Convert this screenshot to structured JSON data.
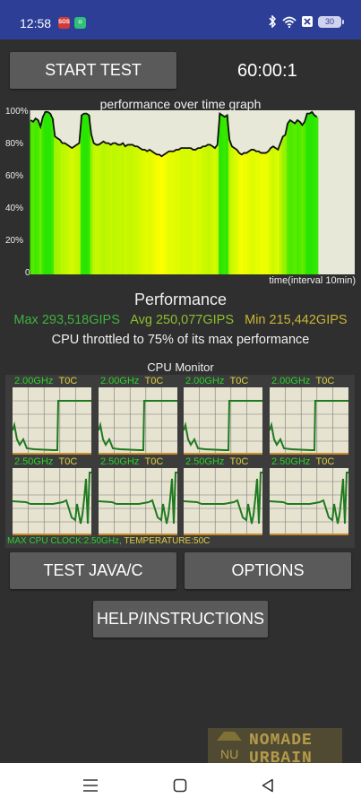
{
  "status_bar": {
    "time": "12:58",
    "battery": "30",
    "icons": [
      "sos-app-icon",
      "green-app-icon",
      "bluetooth-icon",
      "wifi-icon",
      "x-icon",
      "battery-icon"
    ]
  },
  "controls": {
    "start_test_label": "START TEST",
    "timer": "60:00:1"
  },
  "graph": {
    "title": "performance over time graph",
    "y_labels": [
      "100%",
      "80%",
      "60%",
      "40%",
      "20%",
      "0"
    ],
    "x_label": "time(interval 10min)"
  },
  "performance": {
    "title": "Performance",
    "max": "Max 293,518GIPS",
    "avg": "Avg 250,077GIPS",
    "min": "Min 215,442GIPS",
    "throttle_text": "CPU throttled to 75% of its max performance"
  },
  "cpu_monitor": {
    "title": "CPU Monitor",
    "cores": [
      {
        "freq": "2.00GHz",
        "temp": "T0C"
      },
      {
        "freq": "2.00GHz",
        "temp": "T0C"
      },
      {
        "freq": "2.00GHz",
        "temp": "T0C"
      },
      {
        "freq": "2.00GHz",
        "temp": "T0C"
      },
      {
        "freq": "2.50GHz",
        "temp": "T0C"
      },
      {
        "freq": "2.50GHz",
        "temp": "T0C"
      },
      {
        "freq": "2.50GHz",
        "temp": "T0C"
      },
      {
        "freq": "2.50GHz",
        "temp": "T0C"
      }
    ],
    "footer_clock": "MAX CPU CLOCK:2.50GHz,",
    "footer_temp": " TEMPERATURE:50C"
  },
  "buttons": {
    "test_java_c": "TEST JAVA/C",
    "options": "OPTIONS",
    "help": "HELP/INSTRUCTIONS"
  },
  "watermark": {
    "line1": "NOMADE",
    "line2": "URBAIN",
    "small": "NU"
  },
  "nav": {
    "icons": [
      "menu-icon",
      "home-icon",
      "back-icon"
    ]
  },
  "colors": {
    "status_bar": "#2c3e96",
    "background": "#2f2f2f",
    "max_green": "#3fb13f",
    "avg_green": "#8cbf2f",
    "min_yellow": "#c9b535",
    "freq_green": "#2bd12b",
    "temp_yellow": "#e0d040"
  },
  "chart_data": {
    "type": "area",
    "title": "performance over time graph",
    "xlabel": "time(interval 10min)",
    "ylabel": "",
    "ylim": [
      0,
      100
    ],
    "series": [
      {
        "values": [
          94,
          93,
          95,
          94,
          90,
          96,
          99,
          99,
          98,
          95,
          84,
          83,
          82,
          80,
          80,
          79,
          78,
          77,
          78,
          79,
          80,
          97,
          98,
          98,
          97,
          85,
          80,
          79,
          79,
          80,
          81,
          80,
          80,
          79,
          80,
          80,
          79,
          79,
          80,
          78,
          79,
          79,
          79,
          78,
          78,
          77,
          76,
          76,
          75,
          76,
          75,
          74,
          73,
          73,
          72,
          73,
          74,
          75,
          75,
          75,
          76,
          76,
          77,
          77,
          77,
          77,
          77,
          76,
          76,
          77,
          77,
          78,
          78,
          79,
          79,
          78,
          77,
          79,
          98,
          97,
          96,
          97,
          82,
          78,
          77,
          76,
          74,
          73,
          74,
          74,
          75,
          76,
          76,
          75,
          75,
          74,
          74,
          74,
          75,
          77,
          78,
          77,
          76,
          80,
          84,
          85,
          92,
          94,
          93,
          92,
          94,
          93,
          91,
          93,
          98,
          98,
          99,
          97,
          96
        ]
      }
    ]
  }
}
